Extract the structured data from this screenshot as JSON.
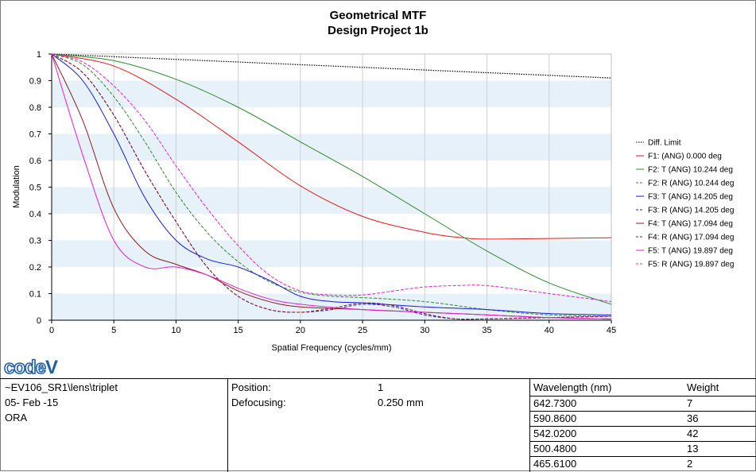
{
  "chart_data": {
    "type": "line",
    "title": "Geometrical MTF",
    "subtitle": "Design Project 1b",
    "xlabel": "Spatial Frequency (cycles/mm)",
    "ylabel": "Modulation",
    "xlim": [
      0,
      45
    ],
    "ylim": [
      0,
      1
    ],
    "x_ticks": [
      "0",
      "5",
      "10",
      "15",
      "20",
      "25",
      "30",
      "35",
      "40",
      "45"
    ],
    "y_ticks": [
      "0",
      "0.1",
      "0.2",
      "0.3",
      "0.4",
      "0.5",
      "0.6",
      "0.7",
      "0.8",
      "0.9",
      "1"
    ],
    "grid": "alternating horizontal bands",
    "legend_position": "right",
    "series": [
      {
        "name": "Diff. Limit",
        "color": "#000000",
        "dash": "dotted",
        "x": [
          0,
          45
        ],
        "y": [
          1.0,
          0.91
        ]
      },
      {
        "name": "F1: (ANG) 0.000 deg",
        "color": "#e41a1c",
        "dash": "solid",
        "x": [
          0,
          5,
          10,
          15,
          20,
          25,
          30,
          33,
          35,
          40,
          45
        ],
        "y": [
          1.0,
          0.955,
          0.83,
          0.67,
          0.505,
          0.39,
          0.33,
          0.31,
          0.305,
          0.307,
          0.31
        ]
      },
      {
        "name": "F2: T (ANG) 10.244 deg",
        "color": "#2e8b2e",
        "dash": "solid",
        "x": [
          0,
          5,
          10,
          15,
          20,
          25,
          30,
          35,
          40,
          45
        ],
        "y": [
          1.0,
          0.975,
          0.905,
          0.8,
          0.67,
          0.54,
          0.4,
          0.26,
          0.14,
          0.06
        ]
      },
      {
        "name": "F2: R (ANG) 10.244 deg",
        "color": "#2e8b2e",
        "dash": "dashed",
        "x": [
          0,
          2.5,
          5,
          7.5,
          10,
          12.5,
          15,
          17.5,
          20,
          22.5,
          25,
          30,
          35,
          40,
          45
        ],
        "y": [
          1.0,
          0.96,
          0.84,
          0.67,
          0.48,
          0.33,
          0.22,
          0.145,
          0.105,
          0.09,
          0.085,
          0.07,
          0.04,
          0.02,
          0.015
        ]
      },
      {
        "name": "F3: T (ANG) 14.205 deg",
        "color": "#1a1ad8",
        "dash": "solid",
        "x": [
          0,
          2.5,
          5,
          7.5,
          10,
          12.5,
          15,
          17.5,
          20,
          22.5,
          25,
          30,
          35,
          40,
          45
        ],
        "y": [
          1.0,
          0.9,
          0.7,
          0.46,
          0.3,
          0.23,
          0.2,
          0.15,
          0.09,
          0.07,
          0.065,
          0.05,
          0.04,
          0.025,
          0.02
        ]
      },
      {
        "name": "F3: R (ANG) 14.205 deg",
        "color": "#1a1ad8",
        "dash": "dashed",
        "x": [
          0,
          2.5,
          5,
          7.5,
          10,
          12.5,
          15,
          17.5,
          20,
          22.5,
          25,
          27.5,
          30,
          32.5,
          35,
          40,
          45
        ],
        "y": [
          1.0,
          0.93,
          0.77,
          0.56,
          0.37,
          0.2,
          0.09,
          0.04,
          0.03,
          0.04,
          0.06,
          0.05,
          0.02,
          0.005,
          0.005,
          0.01,
          0.015
        ]
      },
      {
        "name": "F4: T (ANG) 17.094 deg",
        "color": "#8b1a1a",
        "dash": "solid",
        "x": [
          0,
          2.5,
          5,
          7.5,
          10,
          12.5,
          15,
          17.5,
          20,
          25,
          30,
          35,
          40,
          45
        ],
        "y": [
          1.0,
          0.75,
          0.42,
          0.26,
          0.21,
          0.17,
          0.11,
          0.07,
          0.05,
          0.04,
          0.03,
          0.02,
          0.01,
          0.005
        ]
      },
      {
        "name": "F4: R (ANG) 17.094 deg",
        "color": "#8b1a1a",
        "dash": "dashed",
        "x": [
          0,
          2.5,
          5,
          7.5,
          10,
          12.5,
          15,
          17.5,
          20,
          22.5,
          25,
          27.5,
          30,
          32.5,
          35,
          40,
          45
        ],
        "y": [
          1.0,
          0.93,
          0.77,
          0.56,
          0.37,
          0.2,
          0.09,
          0.04,
          0.03,
          0.045,
          0.065,
          0.055,
          0.025,
          0.005,
          0.005,
          0.01,
          0.015
        ]
      },
      {
        "name": "F5: T (ANG) 19.897 deg",
        "color": "#e020d0",
        "dash": "solid",
        "x": [
          0,
          2.5,
          5,
          7.5,
          10,
          12.5,
          15,
          17.5,
          20,
          25,
          30,
          35,
          40,
          45
        ],
        "y": [
          1.0,
          0.62,
          0.3,
          0.2,
          0.2,
          0.17,
          0.12,
          0.08,
          0.06,
          0.04,
          0.03,
          0.02,
          0.01,
          0.005
        ]
      },
      {
        "name": "F5: R (ANG) 19.897 deg",
        "color": "#e020d0",
        "dash": "dashed",
        "x": [
          0,
          2.5,
          5,
          7.5,
          10,
          12.5,
          15,
          17.5,
          20,
          22.5,
          25,
          27.5,
          30,
          32.5,
          35,
          40,
          45
        ],
        "y": [
          1.0,
          0.97,
          0.88,
          0.75,
          0.58,
          0.42,
          0.28,
          0.17,
          0.11,
          0.095,
          0.095,
          0.11,
          0.125,
          0.13,
          0.13,
          0.1,
          0.07
        ]
      }
    ]
  },
  "info": {
    "file": "~EV106_SR1\\lens\\triplet",
    "date": "05- Feb -15",
    "org": "ORA",
    "position_label": "Position:",
    "position_value": "1",
    "defocus_label": "Defocusing:",
    "defocus_value": "0.250 mm",
    "wavelength_header": "Wavelength (nm)",
    "weight_header": "Weight",
    "wavelengths": [
      {
        "wl": "642.7300",
        "w": "7"
      },
      {
        "wl": "590.8600",
        "w": "36"
      },
      {
        "wl": "542.0200",
        "w": "42"
      },
      {
        "wl": "500.4800",
        "w": "13"
      },
      {
        "wl": "465.6100",
        "w": "2"
      }
    ]
  },
  "logo": {
    "text": "code V",
    "color": "#1f5fa8"
  }
}
